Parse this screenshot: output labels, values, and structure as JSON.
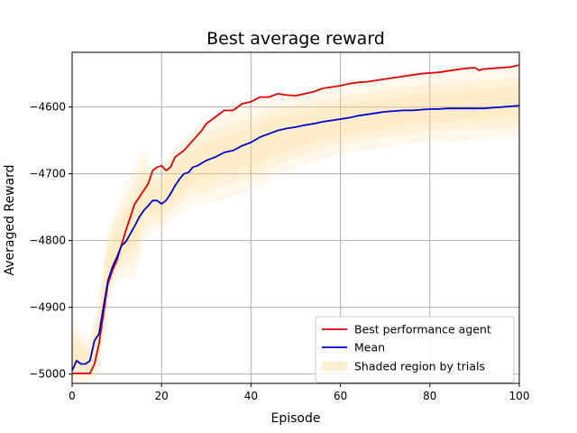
{
  "chart_data": {
    "type": "line",
    "title": "Best average reward",
    "xlabel": "Episode",
    "ylabel": "Averaged Reward",
    "xlim": [
      0,
      100
    ],
    "ylim": [
      -5014,
      -4518
    ],
    "xticks": [
      0,
      20,
      40,
      60,
      80,
      100
    ],
    "yticks": [
      -5000,
      -4900,
      -4800,
      -4700,
      -4600
    ],
    "xtick_labels": [
      "0",
      "20",
      "40",
      "60",
      "80",
      "100"
    ],
    "ytick_labels": [
      "−5000",
      "−4900",
      "−4800",
      "−4700",
      "−4600"
    ],
    "grid": true,
    "legend_position": "lower-right",
    "series": [
      {
        "name": "Best performance agent",
        "color": "#e00000",
        "x": [
          0,
          1,
          2,
          3,
          4,
          5,
          6,
          7,
          8,
          9,
          10,
          12,
          14,
          16,
          17,
          18,
          19,
          20,
          21,
          22,
          23,
          25,
          27,
          29,
          30,
          32,
          34,
          36,
          38,
          40,
          42,
          44,
          46,
          48,
          50,
          52,
          54,
          56,
          58,
          60,
          62,
          64,
          66,
          68,
          70,
          72,
          74,
          76,
          78,
          80,
          82,
          84,
          86,
          88,
          90,
          91,
          92,
          94,
          96,
          98,
          100
        ],
        "y": [
          -4999,
          -4999,
          -4999,
          -4999,
          -4999,
          -4985,
          -4955,
          -4910,
          -4865,
          -4845,
          -4830,
          -4785,
          -4745,
          -4725,
          -4715,
          -4695,
          -4690,
          -4688,
          -4695,
          -4690,
          -4675,
          -4665,
          -4650,
          -4635,
          -4625,
          -4615,
          -4605,
          -4605,
          -4595,
          -4592,
          -4585,
          -4585,
          -4580,
          -4582,
          -4583,
          -4580,
          -4577,
          -4572,
          -4570,
          -4568,
          -4565,
          -4563,
          -4562,
          -4560,
          -4558,
          -4556,
          -4554,
          -4552,
          -4550,
          -4549,
          -4548,
          -4546,
          -4544,
          -4542,
          -4541,
          -4545,
          -4543,
          -4542,
          -4541,
          -4540,
          -4537
        ]
      },
      {
        "name": "Mean",
        "color": "#0000d0",
        "x": [
          0,
          1,
          2,
          3,
          4,
          5,
          6,
          7,
          8,
          9,
          10,
          11,
          12,
          13,
          14,
          15,
          16,
          17,
          18,
          19,
          20,
          21,
          22,
          23,
          24,
          25,
          26,
          27,
          28,
          30,
          32,
          34,
          36,
          38,
          40,
          42,
          44,
          46,
          48,
          50,
          52,
          54,
          56,
          58,
          60,
          62,
          64,
          66,
          68,
          70,
          72,
          74,
          76,
          78,
          80,
          82,
          84,
          86,
          88,
          90,
          92,
          94,
          96,
          98,
          100
        ],
        "y": [
          -4995,
          -4980,
          -4985,
          -4985,
          -4980,
          -4950,
          -4940,
          -4900,
          -4860,
          -4840,
          -4825,
          -4808,
          -4802,
          -4790,
          -4778,
          -4765,
          -4755,
          -4748,
          -4740,
          -4740,
          -4745,
          -4740,
          -4730,
          -4718,
          -4708,
          -4700,
          -4698,
          -4690,
          -4688,
          -4680,
          -4675,
          -4668,
          -4665,
          -4658,
          -4653,
          -4645,
          -4640,
          -4635,
          -4632,
          -4630,
          -4627,
          -4625,
          -4622,
          -4620,
          -4618,
          -4616,
          -4613,
          -4611,
          -4609,
          -4607,
          -4606,
          -4605,
          -4605,
          -4604,
          -4603,
          -4603,
          -4602,
          -4602,
          -4602,
          -4602,
          -4602,
          -4601,
          -4600,
          -4599,
          -4598
        ]
      }
    ],
    "shaded_region": {
      "name": "Shaded region by trials",
      "color": "#ffd27f",
      "x": [
        0,
        2,
        4,
        6,
        8,
        10,
        12,
        14,
        16,
        18,
        20,
        22,
        24,
        26,
        28,
        30,
        35,
        40,
        45,
        50,
        55,
        60,
        65,
        70,
        75,
        80,
        85,
        90,
        95,
        100
      ],
      "upper": [
        -4920,
        -4940,
        -4950,
        -4880,
        -4780,
        -4750,
        -4720,
        -4690,
        -4665,
        -4695,
        -4690,
        -4665,
        -4655,
        -4640,
        -4630,
        -4620,
        -4605,
        -4595,
        -4585,
        -4580,
        -4575,
        -4570,
        -4565,
        -4560,
        -4555,
        -4550,
        -4548,
        -4545,
        -4543,
        -4540
      ],
      "lower": [
        -5014,
        -5014,
        -5014,
        -5000,
        -4900,
        -4860,
        -4855,
        -4855,
        -4800,
        -4785,
        -4785,
        -4770,
        -4760,
        -4750,
        -4745,
        -4745,
        -4735,
        -4725,
        -4705,
        -4690,
        -4680,
        -4670,
        -4665,
        -4660,
        -4655,
        -4652,
        -4650,
        -4648,
        -4646,
        -4644
      ]
    }
  }
}
